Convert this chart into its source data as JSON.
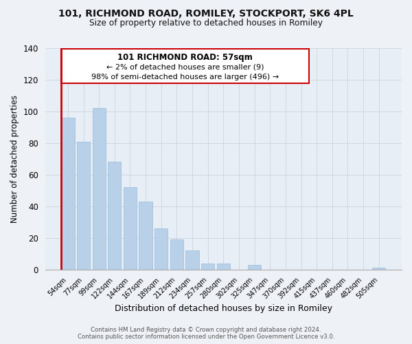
{
  "title_line1": "101, RICHMOND ROAD, ROMILEY, STOCKPORT, SK6 4PL",
  "title_line2": "Size of property relative to detached houses in Romiley",
  "xlabel": "Distribution of detached houses by size in Romiley",
  "ylabel": "Number of detached properties",
  "bar_labels": [
    "54sqm",
    "77sqm",
    "99sqm",
    "122sqm",
    "144sqm",
    "167sqm",
    "189sqm",
    "212sqm",
    "234sqm",
    "257sqm",
    "280sqm",
    "302sqm",
    "325sqm",
    "347sqm",
    "370sqm",
    "392sqm",
    "415sqm",
    "437sqm",
    "460sqm",
    "482sqm",
    "505sqm"
  ],
  "bar_values": [
    96,
    81,
    102,
    68,
    52,
    43,
    26,
    19,
    12,
    4,
    4,
    0,
    3,
    0,
    0,
    0,
    0,
    0,
    0,
    0,
    1
  ],
  "bar_color": "#b8d0e8",
  "bar_edge_color": "#9bbcd8",
  "highlight_color": "#cc0000",
  "ylim": [
    0,
    140
  ],
  "yticks": [
    0,
    20,
    40,
    60,
    80,
    100,
    120,
    140
  ],
  "annotation_title": "101 RICHMOND ROAD: 57sqm",
  "annotation_line2": "← 2% of detached houses are smaller (9)",
  "annotation_line3": "98% of semi-detached houses are larger (496) →",
  "footer_line1": "Contains HM Land Registry data © Crown copyright and database right 2024.",
  "footer_line2": "Contains public sector information licensed under the Open Government Licence v3.0.",
  "bg_color": "#eef2f7",
  "plot_bg_color": "#e8eef5"
}
